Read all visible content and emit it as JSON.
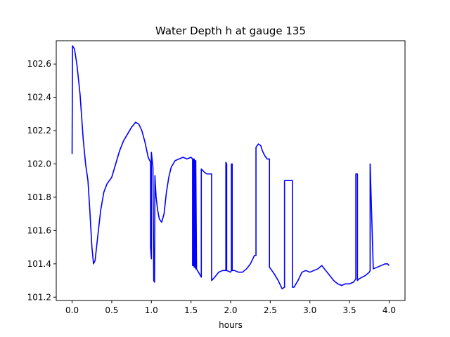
{
  "chart_data": {
    "type": "line",
    "title": "Water Depth h at gauge 135",
    "xlabel": "hours",
    "ylabel": "",
    "xlim": [
      -0.2,
      4.2
    ],
    "ylim": [
      101.18,
      102.74
    ],
    "xticks": [
      0.0,
      0.5,
      1.0,
      1.5,
      2.0,
      2.5,
      3.0,
      3.5,
      4.0
    ],
    "xtick_labels": [
      "0.0",
      "0.5",
      "1.0",
      "1.5",
      "2.0",
      "2.5",
      "3.0",
      "3.5",
      "4.0"
    ],
    "yticks": [
      101.2,
      101.4,
      101.6,
      101.8,
      102.0,
      102.2,
      102.4,
      102.6
    ],
    "ytick_labels": [
      "101.2",
      "101.4",
      "101.6",
      "101.8",
      "102.0",
      "102.2",
      "102.4",
      "102.6"
    ],
    "grid": false,
    "series": [
      {
        "color": "#0000ff",
        "x": [
          0.0,
          0.005,
          0.03,
          0.06,
          0.1,
          0.14,
          0.17,
          0.2,
          0.22,
          0.25,
          0.27,
          0.29,
          0.32,
          0.36,
          0.4,
          0.44,
          0.5,
          0.55,
          0.6,
          0.65,
          0.7,
          0.75,
          0.8,
          0.84,
          0.88,
          0.92,
          0.96,
          0.99,
          0.99,
          1.0,
          1.0,
          1.02,
          1.03,
          1.04,
          1.045,
          1.045,
          1.05,
          1.06,
          1.08,
          1.1,
          1.13,
          1.16,
          1.19,
          1.22,
          1.25,
          1.3,
          1.35,
          1.4,
          1.45,
          1.5,
          1.52,
          1.52,
          1.53,
          1.53,
          1.54,
          1.54,
          1.55,
          1.55,
          1.56,
          1.56,
          1.57,
          1.63,
          1.63,
          1.67,
          1.7,
          1.75,
          1.76,
          1.76,
          1.8,
          1.85,
          1.9,
          1.94,
          1.94,
          1.95,
          1.95,
          2.0,
          2.01,
          2.01,
          2.02,
          2.02,
          2.05,
          2.1,
          2.15,
          2.2,
          2.25,
          2.3,
          2.32,
          2.32,
          2.35,
          2.38,
          2.4,
          2.43,
          2.46,
          2.49,
          2.49,
          2.55,
          2.6,
          2.65,
          2.68,
          2.68,
          2.7,
          2.75,
          2.78,
          2.78,
          2.8,
          2.85,
          2.9,
          2.95,
          3.0,
          3.05,
          3.1,
          3.15,
          3.2,
          3.25,
          3.3,
          3.35,
          3.4,
          3.45,
          3.5,
          3.55,
          3.58,
          3.58,
          3.6,
          3.6,
          3.62,
          3.7,
          3.75,
          3.76,
          3.76,
          3.8,
          3.85,
          3.9,
          3.95,
          3.98,
          4.0
        ],
        "y": [
          102.06,
          102.71,
          102.69,
          102.6,
          102.42,
          102.15,
          102.0,
          101.9,
          101.75,
          101.5,
          101.4,
          101.42,
          101.55,
          101.72,
          101.83,
          101.88,
          101.92,
          102.0,
          102.08,
          102.14,
          102.18,
          102.22,
          102.25,
          102.24,
          102.2,
          102.13,
          102.04,
          102.01,
          101.5,
          101.43,
          102.07,
          101.98,
          101.3,
          101.29,
          101.93,
          101.93,
          101.88,
          101.8,
          101.72,
          101.67,
          101.65,
          101.7,
          101.83,
          101.92,
          101.98,
          102.02,
          102.03,
          102.04,
          102.03,
          102.04,
          102.03,
          101.39,
          101.39,
          102.03,
          101.38,
          102.03,
          101.38,
          102.02,
          101.37,
          102.02,
          101.37,
          101.32,
          101.97,
          101.95,
          101.94,
          101.94,
          101.94,
          101.3,
          101.32,
          101.35,
          101.36,
          101.36,
          102.01,
          102.0,
          101.36,
          101.35,
          101.36,
          102.0,
          102.0,
          101.36,
          101.36,
          101.35,
          101.35,
          101.37,
          101.4,
          101.45,
          101.45,
          102.1,
          102.12,
          102.11,
          102.08,
          102.05,
          102.03,
          102.03,
          101.38,
          101.34,
          101.3,
          101.25,
          101.26,
          101.9,
          101.9,
          101.9,
          101.9,
          101.26,
          101.26,
          101.3,
          101.35,
          101.36,
          101.35,
          101.36,
          101.37,
          101.39,
          101.36,
          101.33,
          101.3,
          101.28,
          101.27,
          101.28,
          101.28,
          101.29,
          101.31,
          101.94,
          101.94,
          101.3,
          101.31,
          101.33,
          101.35,
          101.36,
          102.0,
          101.37,
          101.38,
          101.39,
          101.4,
          101.4,
          101.39
        ]
      }
    ]
  }
}
